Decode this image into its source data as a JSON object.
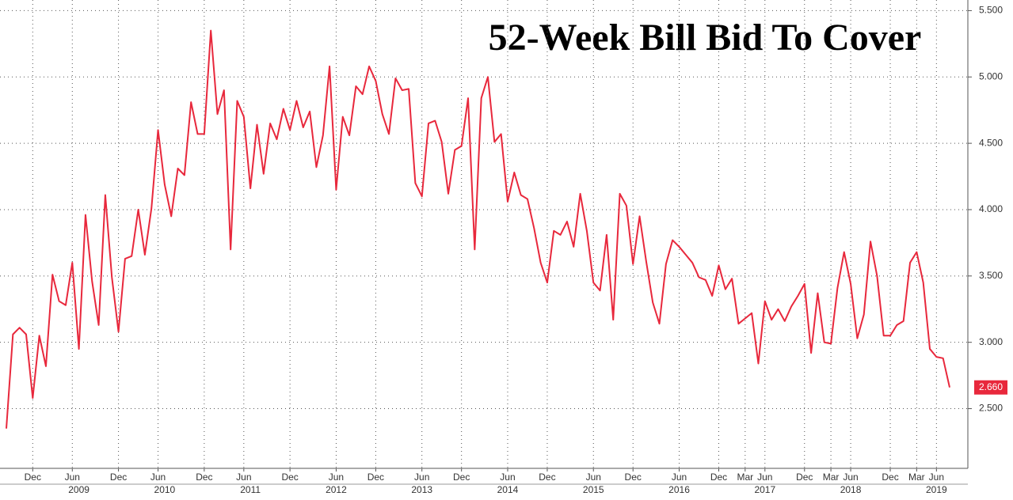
{
  "chart_data": {
    "type": "line",
    "title": "52-Week Bill Bid To Cover",
    "categories": [
      null,
      null,
      null,
      null,
      "Dec",
      null,
      null,
      null,
      null,
      null,
      "Jun",
      null,
      null,
      null,
      null,
      null,
      null,
      "Dec",
      null,
      null,
      null,
      null,
      null,
      "Jun",
      null,
      null,
      null,
      null,
      null,
      null,
      "Dec",
      null,
      null,
      null,
      null,
      null,
      "Jun",
      null,
      null,
      null,
      null,
      null,
      null,
      "Dec",
      null,
      null,
      null,
      null,
      null,
      null,
      "Jun",
      null,
      null,
      null,
      null,
      null,
      "Dec",
      null,
      null,
      null,
      null,
      null,
      null,
      "Jun",
      null,
      null,
      null,
      null,
      null,
      "Dec",
      null,
      null,
      null,
      null,
      null,
      null,
      "Jun",
      null,
      null,
      null,
      null,
      null,
      "Dec",
      null,
      null,
      null,
      null,
      null,
      null,
      "Jun",
      null,
      null,
      null,
      null,
      null,
      "Dec",
      null,
      null,
      null,
      null,
      null,
      null,
      "Jun",
      null,
      null,
      null,
      null,
      null,
      "Dec",
      null,
      null,
      null,
      "Mar",
      null,
      null,
      "Jun",
      null,
      null,
      null,
      null,
      null,
      "Dec",
      null,
      null,
      null,
      "Mar",
      null,
      null,
      "Jun",
      null,
      null,
      null,
      null,
      null,
      "Dec",
      null,
      null,
      null,
      "Mar",
      null,
      null,
      "Jun",
      null,
      null
    ],
    "years": [
      null,
      null,
      null,
      null,
      null,
      null,
      null,
      null,
      null,
      null,
      null,
      "2009",
      null,
      null,
      null,
      null,
      null,
      null,
      null,
      null,
      null,
      null,
      null,
      null,
      "2010",
      null,
      null,
      null,
      null,
      null,
      null,
      null,
      null,
      null,
      null,
      null,
      null,
      "2011",
      null,
      null,
      null,
      null,
      null,
      null,
      null,
      null,
      null,
      null,
      null,
      null,
      "2012",
      null,
      null,
      null,
      null,
      null,
      null,
      null,
      null,
      null,
      null,
      null,
      null,
      "2013",
      null,
      null,
      null,
      null,
      null,
      null,
      null,
      null,
      null,
      null,
      null,
      null,
      "2014",
      null,
      null,
      null,
      null,
      null,
      null,
      null,
      null,
      null,
      null,
      null,
      null,
      "2015",
      null,
      null,
      null,
      null,
      null,
      null,
      null,
      null,
      null,
      null,
      null,
      null,
      "2016",
      null,
      null,
      null,
      null,
      null,
      null,
      null,
      null,
      null,
      null,
      null,
      null,
      "2017",
      null,
      null,
      null,
      null,
      null,
      null,
      null,
      null,
      null,
      null,
      null,
      null,
      "2018",
      null,
      null,
      null,
      null,
      null,
      null,
      null,
      null,
      null,
      null,
      null,
      null,
      "2019",
      null,
      null
    ],
    "series": [
      {
        "color": "#e8283c",
        "values": [
          2.35,
          3.06,
          3.11,
          3.06,
          2.58,
          3.05,
          2.82,
          3.51,
          3.31,
          3.28,
          3.6,
          2.95,
          3.96,
          3.46,
          3.13,
          4.11,
          3.49,
          3.08,
          3.63,
          3.65,
          4.0,
          3.66,
          4.01,
          4.6,
          4.19,
          3.95,
          4.31,
          4.26,
          4.81,
          4.57,
          4.57,
          5.35,
          4.72,
          4.9,
          3.7,
          4.82,
          4.7,
          4.16,
          4.64,
          4.27,
          4.65,
          4.53,
          4.76,
          4.6,
          4.82,
          4.62,
          4.74,
          4.32,
          4.56,
          5.08,
          4.15,
          4.7,
          4.56,
          4.93,
          4.87,
          5.08,
          4.97,
          4.72,
          4.57,
          4.99,
          4.9,
          4.91,
          4.2,
          4.1,
          4.65,
          4.67,
          4.51,
          4.12,
          4.45,
          4.48,
          4.84,
          3.7,
          4.84,
          5.0,
          4.51,
          4.57,
          4.06,
          4.28,
          4.11,
          4.08,
          3.86,
          3.6,
          3.45,
          3.84,
          3.81,
          3.91,
          3.72,
          4.12,
          3.84,
          3.45,
          3.39,
          3.81,
          3.17,
          4.12,
          4.03,
          3.59,
          3.95,
          3.61,
          3.3,
          3.14,
          3.59,
          3.77,
          3.72,
          3.66,
          3.6,
          3.49,
          3.47,
          3.35,
          3.58,
          3.4,
          3.48,
          3.14,
          3.18,
          3.22,
          2.84,
          3.31,
          3.17,
          3.25,
          3.16,
          3.27,
          3.35,
          3.44,
          2.92,
          3.37,
          3.0,
          2.99,
          3.41,
          3.68,
          3.44,
          3.03,
          3.21,
          3.76,
          3.5,
          3.05,
          3.05,
          3.13,
          3.16,
          3.6,
          3.68,
          3.45,
          2.95,
          2.89,
          2.88,
          2.66
        ],
        "value_labels": [
          null,
          null,
          null,
          null,
          null,
          null,
          null,
          null,
          null,
          null,
          null,
          null,
          null,
          null,
          null,
          null,
          null,
          null,
          null,
          null,
          null,
          null,
          null,
          null,
          null,
          null,
          null,
          null,
          null,
          null,
          null,
          null,
          null,
          null,
          null,
          null,
          null,
          null,
          null,
          null,
          null,
          null,
          null,
          null,
          null,
          null,
          null,
          null,
          null,
          null,
          null,
          null,
          null,
          null,
          null,
          null,
          null,
          null,
          null,
          null,
          null,
          null,
          null,
          null,
          null,
          null,
          null,
          null,
          null,
          null,
          null,
          null,
          null,
          null,
          null,
          null,
          null,
          null,
          null,
          null,
          null,
          null,
          null,
          null,
          null,
          null,
          null,
          null,
          null,
          null,
          null,
          null,
          null,
          null,
          null,
          null,
          null,
          null,
          null,
          null,
          null,
          null,
          null,
          null,
          null,
          null,
          null,
          null,
          null,
          null,
          null,
          null,
          null,
          null,
          null,
          null,
          null,
          null,
          null,
          null,
          null,
          null,
          null,
          null,
          null,
          null,
          null,
          null,
          null,
          null,
          null,
          null,
          null,
          null,
          null,
          null,
          null,
          null,
          null,
          null,
          null,
          null,
          null,
          "2.660"
        ]
      }
    ],
    "ylim": [
      2.05,
      5.58
    ],
    "yticks": [
      {
        "value": 2.5,
        "label": "2.500"
      },
      {
        "value": 3.0,
        "label": "3.000"
      },
      {
        "value": 3.5,
        "label": "3.500"
      },
      {
        "value": 4.0,
        "label": "4.000"
      },
      {
        "value": 4.5,
        "label": "4.500"
      },
      {
        "value": 5.0,
        "label": "5.000"
      },
      {
        "value": 5.5,
        "label": "5.500"
      }
    ],
    "grid": true
  }
}
